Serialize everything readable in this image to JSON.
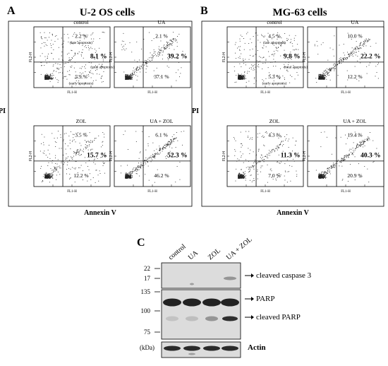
{
  "panel_a": {
    "letter": "A",
    "title": "U-2 OS cells",
    "y_axis_label": "PI",
    "x_axis_label": "Annexin V",
    "plots": [
      {
        "title": "control",
        "ul": "2.2 %",
        "ul_note": "(late apoptosis)",
        "total": "8.1 %",
        "total_note": "(total apoptosis)",
        "lr": "5.9 %",
        "lr_note": "(early apoptosis)"
      },
      {
        "title": "UA",
        "ul": "2.1 %",
        "total": "39.2 %",
        "lr": "37.1 %"
      },
      {
        "title": "ZOL",
        "ul": "3.5 %",
        "total": "15.7 %",
        "lr": "12.2 %"
      },
      {
        "title": "UA + ZOL",
        "ul": "6.1 %",
        "total": "52.3 %",
        "lr": "46.2 %"
      }
    ]
  },
  "panel_b": {
    "letter": "B",
    "title": "MG-63 cells",
    "y_axis_label": "PI",
    "x_axis_label": "Annexin V",
    "plots": [
      {
        "title": "control",
        "ul": "4.5 %",
        "ul_note": "(late apoptosis)",
        "total": "9.8 %",
        "total_note": "(total apoptosis)",
        "lr": "5.3 %",
        "lr_note": "(early apoptosis)"
      },
      {
        "title": "UA",
        "ul": "10.0 %",
        "total": "22.2 %",
        "lr": "12.2 %"
      },
      {
        "title": "ZOL",
        "ul": "4.3 %",
        "total": "11.3 %",
        "lr": "7.0 %"
      },
      {
        "title": "UA + ZOL",
        "ul": "19.4 %",
        "total": "40.3 %",
        "lr": "20.9 %"
      }
    ]
  },
  "flow_axis": {
    "x_channel": "FL1-H",
    "y_channel": "FL2-H"
  },
  "panel_c": {
    "letter": "C",
    "lanes": [
      "control",
      "UA",
      "ZOL",
      "UA + ZOL"
    ],
    "markers": [
      "22",
      "17",
      "135",
      "100",
      "75"
    ],
    "kda_label": "(kDa)",
    "band_labels": [
      "cleaved caspase 3",
      "PARP",
      "cleaved PARP",
      "Actin"
    ]
  }
}
